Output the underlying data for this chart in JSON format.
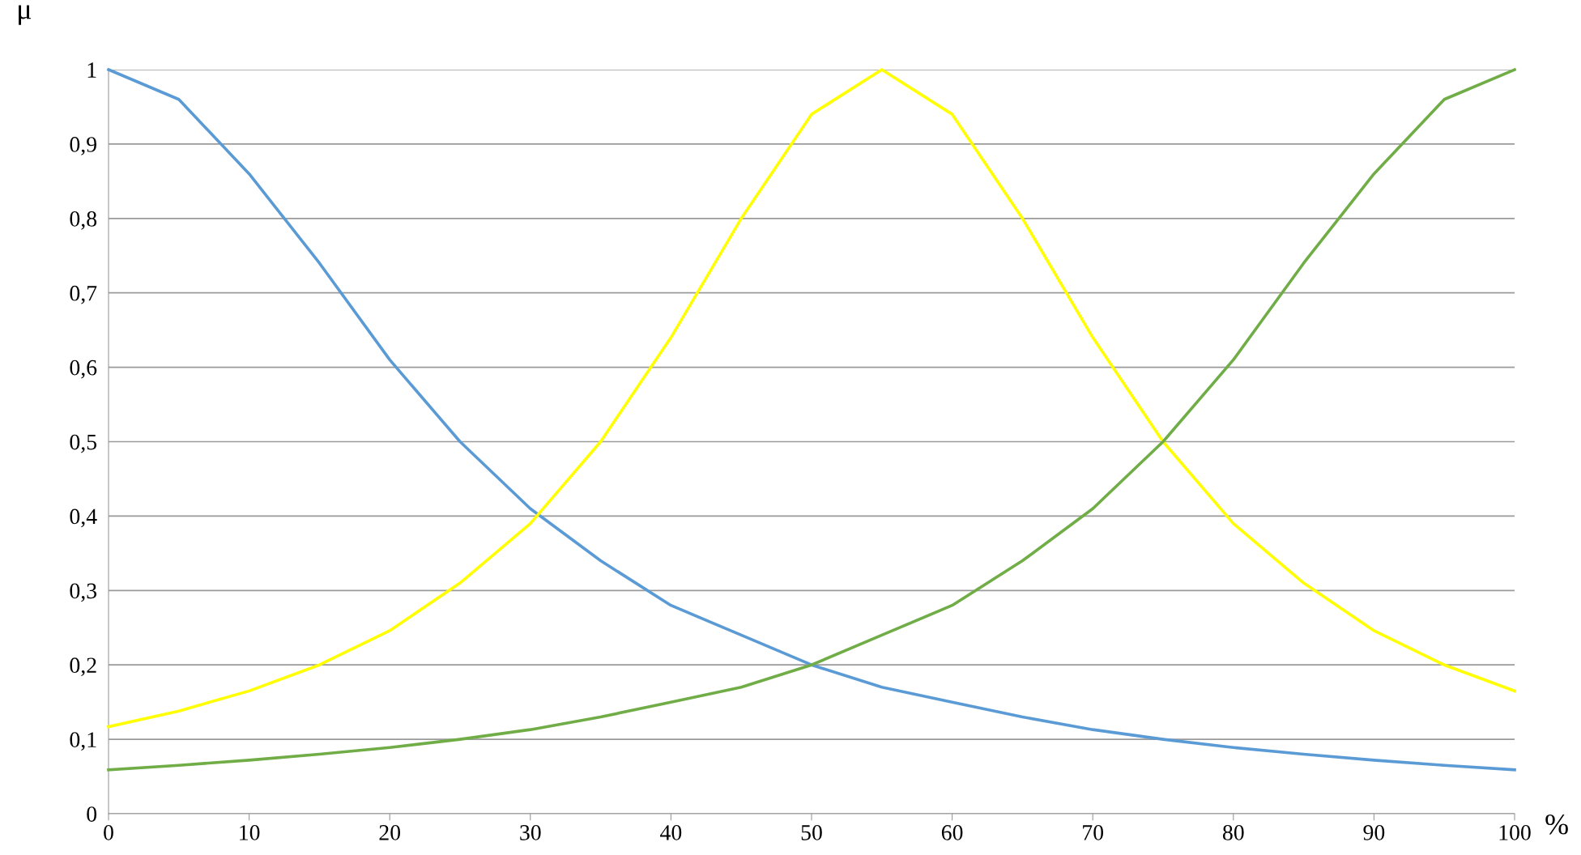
{
  "chart_data": {
    "type": "line",
    "xlabel": "%",
    "ylabel": "μ",
    "x": [
      0,
      5,
      10,
      15,
      20,
      25,
      30,
      35,
      40,
      45,
      50,
      55,
      60,
      65,
      70,
      75,
      80,
      85,
      90,
      95,
      100
    ],
    "series": [
      {
        "color": "#5b9bd5",
        "values": [
          1,
          0.96,
          0.86,
          0.74,
          0.61,
          0.5,
          0.41,
          0.34,
          0.28,
          0.24,
          0.2,
          0.17,
          0.15,
          0.13,
          0.113,
          0.1,
          0.089,
          0.08,
          0.072,
          0.065,
          0.059
        ]
      },
      {
        "color": "#ffff00",
        "values": [
          0.117,
          0.138,
          0.165,
          0.2,
          0.246,
          0.31,
          0.39,
          0.5,
          0.64,
          0.8,
          0.94,
          1,
          0.94,
          0.8,
          0.64,
          0.5,
          0.39,
          0.31,
          0.246,
          0.2,
          0.165
        ]
      },
      {
        "color": "#70ad47",
        "values": [
          0.059,
          0.065,
          0.072,
          0.08,
          0.089,
          0.1,
          0.113,
          0.13,
          0.15,
          0.17,
          0.2,
          0.24,
          0.28,
          0.34,
          0.41,
          0.5,
          0.61,
          0.74,
          0.86,
          0.96,
          1
        ]
      }
    ],
    "xlim": [
      0,
      100
    ],
    "xticks": [
      0,
      10,
      20,
      30,
      40,
      50,
      60,
      70,
      80,
      90,
      100
    ],
    "ylim": [
      0,
      1
    ],
    "yticks": [
      0,
      {
        "value": 0.1,
        "label": "0,1"
      },
      {
        "value": 0.2,
        "label": "0,2"
      },
      {
        "value": 0.3,
        "label": "0,3"
      },
      {
        "value": 0.4,
        "label": "0,4"
      },
      {
        "value": 0.5,
        "label": "0,5"
      },
      {
        "value": 0.6,
        "label": "0,6"
      },
      {
        "value": 0.7,
        "label": "0,7"
      },
      {
        "value": 0.8,
        "label": "0,8"
      },
      {
        "value": 0.9,
        "label": "0,9"
      },
      1
    ],
    "grid": "y",
    "marker": "none",
    "line_style": "solid"
  }
}
